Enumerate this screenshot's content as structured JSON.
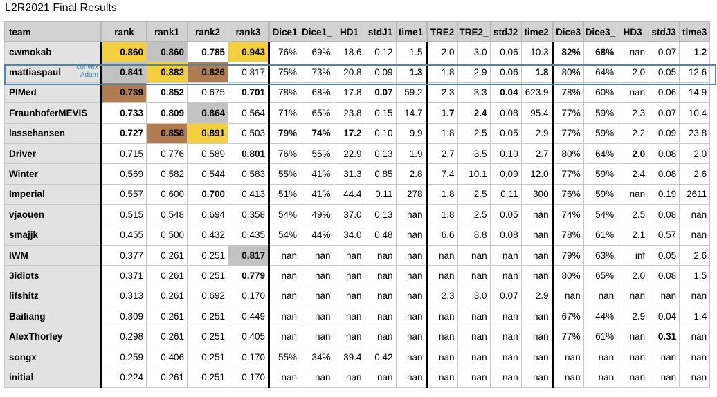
{
  "title": "L2R2021 Final Results",
  "headers": [
    "team",
    "rank",
    "rank1",
    "rank2",
    "rank3",
    "Dice1",
    "Dice1_",
    "HD1",
    "stdJ1",
    "time1",
    "TRE2",
    "TRE2_",
    "stdJ2",
    "time2",
    "Dice3",
    "Dice3_",
    "HD3",
    "stdJ3",
    "time3"
  ],
  "highlight_note": [
    "convex",
    "Adam"
  ],
  "highlight_colors": {
    "gold": "#f3cf3e",
    "silver": "#c2c2c2",
    "bronze": "#b07c52",
    "box": "#4a88ac"
  },
  "rows": [
    [
      "cwmokab",
      "0.860",
      "0.860",
      "0.785",
      "0.943",
      "76%",
      "69%",
      "18.6",
      "0.12",
      "1.5",
      "2.0",
      "3.0",
      "0.06",
      "10.3",
      "82%",
      "68%",
      "nan",
      "0.07",
      "1.2"
    ],
    [
      "mattiaspaul",
      "0.841",
      "0.882",
      "0.826",
      "0.817",
      "75%",
      "73%",
      "20.8",
      "0.09",
      "1.3",
      "1.8",
      "2.9",
      "0.06",
      "1.8",
      "80%",
      "64%",
      "2.0",
      "0.05",
      "12.6"
    ],
    [
      "PIMed",
      "0.739",
      "0.852",
      "0.675",
      "0.701",
      "78%",
      "68%",
      "17.8",
      "0.07",
      "59.2",
      "2.3",
      "3.3",
      "0.04",
      "623.9",
      "78%",
      "60%",
      "nan",
      "0.06",
      "14.9"
    ],
    [
      "FraunhoferMEVIS",
      "0.733",
      "0.809",
      "0.864",
      "0.564",
      "71%",
      "65%",
      "23.8",
      "0.15",
      "14.7",
      "1.7",
      "2.4",
      "0.08",
      "95.4",
      "77%",
      "59%",
      "2.3",
      "0.07",
      "10.4"
    ],
    [
      "lassehansen",
      "0.727",
      "0.858",
      "0.891",
      "0.503",
      "79%",
      "74%",
      "17.2",
      "0.10",
      "9.9",
      "1.8",
      "2.5",
      "0.05",
      "2.9",
      "77%",
      "59%",
      "2.2",
      "0.09",
      "23.8"
    ],
    [
      "Driver",
      "0.715",
      "0.776",
      "0.589",
      "0.801",
      "76%",
      "55%",
      "22.9",
      "0.13",
      "1.9",
      "2.7",
      "3.5",
      "0.10",
      "2.7",
      "80%",
      "64%",
      "2.0",
      "0.08",
      "2.0"
    ],
    [
      "Winter",
      "0.569",
      "0.582",
      "0.544",
      "0.583",
      "55%",
      "41%",
      "31.3",
      "0.85",
      "2.8",
      "7.4",
      "10.1",
      "0.09",
      "12.0",
      "77%",
      "59%",
      "2.4",
      "0.08",
      "2.6"
    ],
    [
      "Imperial",
      "0.557",
      "0.600",
      "0.700",
      "0.413",
      "51%",
      "41%",
      "44.4",
      "0.11",
      "278",
      "1.8",
      "2.5",
      "0.11",
      "300",
      "76%",
      "59%",
      "nan",
      "0.19",
      "2611"
    ],
    [
      "vjaouen",
      "0.515",
      "0.548",
      "0.694",
      "0.358",
      "54%",
      "49%",
      "37.0",
      "0.13",
      "nan",
      "1.8",
      "2.5",
      "0.05",
      "nan",
      "74%",
      "54%",
      "2.5",
      "0.08",
      "nan"
    ],
    [
      "smajjk",
      "0.455",
      "0.500",
      "0.432",
      "0.435",
      "54%",
      "44%",
      "34.0",
      "0.48",
      "nan",
      "6.6",
      "8.8",
      "0.08",
      "nan",
      "78%",
      "61%",
      "2.1",
      "0.57",
      "nan"
    ],
    [
      "IWM",
      "0.377",
      "0.261",
      "0.251",
      "0.817",
      "nan",
      "nan",
      "nan",
      "nan",
      "nan",
      "nan",
      "nan",
      "nan",
      "nan",
      "79%",
      "63%",
      "inf",
      "0.05",
      "2.6"
    ],
    [
      "3idiots",
      "0.371",
      "0.261",
      "0.251",
      "0.779",
      "nan",
      "nan",
      "nan",
      "nan",
      "nan",
      "nan",
      "nan",
      "nan",
      "nan",
      "80%",
      "65%",
      "2.0",
      "0.08",
      "1.5"
    ],
    [
      "lifshitz",
      "0.313",
      "0.261",
      "0.692",
      "0.170",
      "nan",
      "nan",
      "nan",
      "nan",
      "nan",
      "2.3",
      "3.0",
      "0.07",
      "2.9",
      "nan",
      "nan",
      "nan",
      "nan",
      "nan"
    ],
    [
      "Bailiang",
      "0.309",
      "0.261",
      "0.251",
      "0.449",
      "nan",
      "nan",
      "nan",
      "nan",
      "nan",
      "nan",
      "nan",
      "nan",
      "nan",
      "67%",
      "44%",
      "2.9",
      "0.04",
      "1.4"
    ],
    [
      "AlexThorley",
      "0.298",
      "0.261",
      "0.251",
      "0.405",
      "nan",
      "nan",
      "nan",
      "nan",
      "nan",
      "nan",
      "nan",
      "nan",
      "nan",
      "77%",
      "61%",
      "nan",
      "0.31",
      "nan"
    ],
    [
      "songx",
      "0.259",
      "0.406",
      "0.251",
      "0.170",
      "55%",
      "34%",
      "39.4",
      "0.42",
      "nan",
      "nan",
      "nan",
      "nan",
      "nan",
      "nan",
      "nan",
      "nan",
      "nan",
      "nan"
    ],
    [
      "initial",
      "0.224",
      "0.261",
      "0.251",
      "0.170",
      "nan",
      "nan",
      "nan",
      "nan",
      "nan",
      "nan",
      "nan",
      "nan",
      "nan",
      "nan",
      "nan",
      "nan",
      "nan",
      "nan"
    ]
  ],
  "bold_cells": [
    [
      0,
      1
    ],
    [
      0,
      2
    ],
    [
      0,
      3
    ],
    [
      0,
      4
    ],
    [
      0,
      14
    ],
    [
      0,
      15
    ],
    [
      0,
      18
    ],
    [
      1,
      1
    ],
    [
      1,
      2
    ],
    [
      1,
      3
    ],
    [
      1,
      9
    ],
    [
      1,
      13
    ],
    [
      2,
      1
    ],
    [
      2,
      2
    ],
    [
      2,
      4
    ],
    [
      2,
      8
    ],
    [
      2,
      12
    ],
    [
      3,
      1
    ],
    [
      3,
      2
    ],
    [
      3,
      3
    ],
    [
      3,
      10
    ],
    [
      3,
      11
    ],
    [
      4,
      1
    ],
    [
      4,
      2
    ],
    [
      4,
      3
    ],
    [
      4,
      5
    ],
    [
      4,
      6
    ],
    [
      4,
      7
    ],
    [
      5,
      4
    ],
    [
      5,
      16
    ],
    [
      7,
      3
    ],
    [
      10,
      4
    ],
    [
      11,
      4
    ],
    [
      14,
      17
    ]
  ],
  "medal_cells": [
    [
      0,
      1,
      "gold"
    ],
    [
      1,
      1,
      "silver"
    ],
    [
      2,
      1,
      "bronze"
    ],
    [
      1,
      2,
      "gold"
    ],
    [
      4,
      2,
      "bronze"
    ],
    [
      0,
      2,
      "silver"
    ],
    [
      4,
      3,
      "gold"
    ],
    [
      3,
      3,
      "silver"
    ],
    [
      1,
      3,
      "bronze"
    ],
    [
      0,
      4,
      "gold"
    ],
    [
      10,
      4,
      "silver"
    ]
  ]
}
